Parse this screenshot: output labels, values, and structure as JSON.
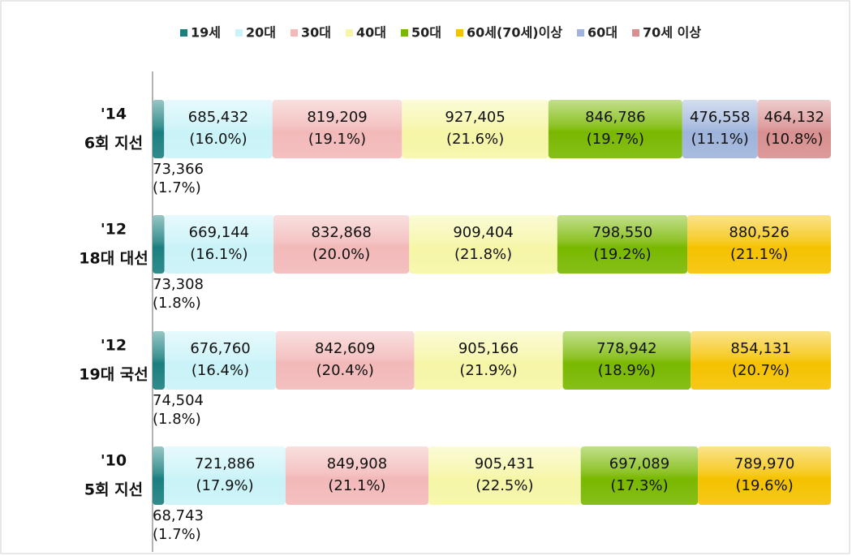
{
  "chart_data": {
    "type": "stacked_bar_horizontal_percent",
    "categories": [
      [
        "'14",
        "6회 지선"
      ],
      [
        "'12",
        "18대 대선"
      ],
      [
        "'12",
        "19대 국선"
      ],
      [
        "'10",
        "5회 지선"
      ]
    ],
    "series": [
      {
        "name": "19세",
        "color": "#1b7f7f",
        "values": [
          73366,
          73308,
          74504,
          68743
        ],
        "value_labels": [
          "73,366",
          "73,308",
          "74,504",
          "68,743"
        ],
        "percent_labels": [
          "(1.7%)",
          "(1.8%)",
          "(1.8%)",
          "(1.7%)"
        ]
      },
      {
        "name": "20대",
        "color": "#c9f3f8",
        "values": [
          685432,
          669144,
          676760,
          721886
        ],
        "value_labels": [
          "685,432",
          "669,144",
          "676,760",
          "721,886"
        ],
        "percent_labels": [
          "(16.0%)",
          "(16.1%)",
          "(16.4%)",
          "(17.9%)"
        ]
      },
      {
        "name": "30대",
        "color": "#f3b9b9",
        "values": [
          819209,
          832868,
          842609,
          849908
        ],
        "value_labels": [
          "819,209",
          "832,868",
          "842,609",
          "849,908"
        ],
        "percent_labels": [
          "(19.1%)",
          "(20.0%)",
          "(20.4%)",
          "(21.1%)"
        ]
      },
      {
        "name": "40대",
        "color": "#f6f6a6",
        "values": [
          927405,
          909404,
          905166,
          905431
        ],
        "value_labels": [
          "927,405",
          "909,404",
          "905,166",
          "905,431"
        ],
        "percent_labels": [
          "(21.6%)",
          "(21.8%)",
          "(21.9%)",
          "(22.5%)"
        ]
      },
      {
        "name": "50대",
        "color": "#79b800",
        "values": [
          846786,
          798550,
          778942,
          697089
        ],
        "value_labels": [
          "846,786",
          "798,550",
          "778,942",
          "697,089"
        ],
        "percent_labels": [
          "(19.7%)",
          "(19.2%)",
          "(18.9%)",
          "(17.3%)"
        ]
      },
      {
        "name": "60세(70세)이상",
        "color": "#f5c200",
        "values": [
          null,
          880526,
          854131,
          789970
        ],
        "value_labels": [
          null,
          "880,526",
          "854,131",
          "789,970"
        ],
        "percent_labels": [
          null,
          "(21.1%)",
          "(20.7%)",
          "(19.6%)"
        ]
      },
      {
        "name": "60대",
        "color": "#9fb4dc",
        "values": [
          476558,
          null,
          null,
          null
        ],
        "value_labels": [
          "476,558",
          null,
          null,
          null
        ],
        "percent_labels": [
          "(11.1%)",
          null,
          null,
          null
        ]
      },
      {
        "name": "70세 이상",
        "color": "#d98f8f",
        "values": [
          464132,
          null,
          null,
          null
        ],
        "value_labels": [
          "464,132",
          null,
          null,
          null
        ],
        "percent_labels": [
          "(10.8%)",
          null,
          null,
          null
        ]
      }
    ]
  }
}
